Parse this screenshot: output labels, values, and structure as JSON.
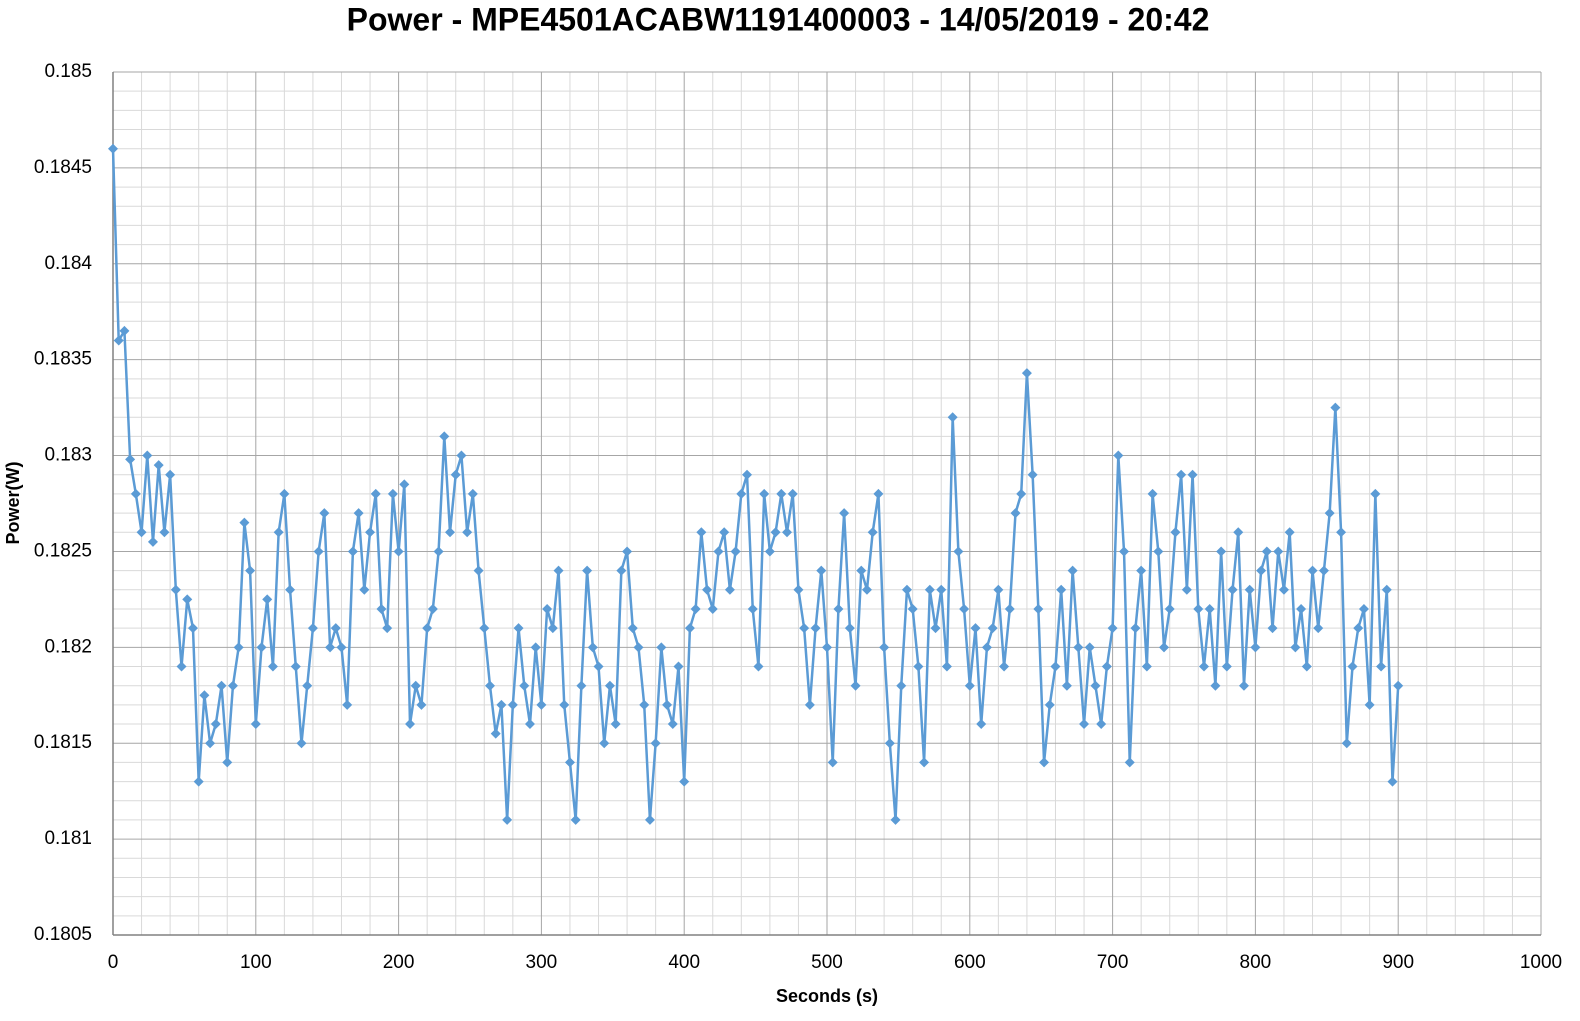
{
  "chart_data": {
    "type": "line",
    "title": "Power - MPE4501ACABW1191400003 - 14/05/2019 - 20:42",
    "x_label": "Seconds (s)",
    "y_label": "Power(W)",
    "color": "#5b9bd5",
    "marker": "diamond",
    "grid": true,
    "minor_grid": true,
    "xlim": [
      0,
      1000
    ],
    "xticks": [
      0,
      100,
      200,
      300,
      400,
      500,
      600,
      700,
      800,
      900,
      1000
    ],
    "ylim": [
      0.1805,
      0.185
    ],
    "yticks": [
      0.1805,
      0.181,
      0.1815,
      0.182,
      0.1825,
      0.183,
      0.1835,
      0.184,
      0.1845,
      0.185
    ],
    "x": [
      0,
      4,
      8,
      12,
      16,
      20,
      24,
      28,
      32,
      36,
      40,
      44,
      48,
      52,
      56,
      60,
      64,
      68,
      72,
      76,
      80,
      84,
      88,
      92,
      96,
      100,
      104,
      108,
      112,
      116,
      120,
      124,
      128,
      132,
      136,
      140,
      144,
      148,
      152,
      156,
      160,
      164,
      168,
      172,
      176,
      180,
      184,
      188,
      192,
      196,
      200,
      204,
      208,
      212,
      216,
      220,
      224,
      228,
      232,
      236,
      240,
      244,
      248,
      252,
      256,
      260,
      264,
      268,
      272,
      276,
      280,
      284,
      288,
      292,
      296,
      300,
      304,
      308,
      312,
      316,
      320,
      324,
      328,
      332,
      336,
      340,
      344,
      348,
      352,
      356,
      360,
      364,
      368,
      372,
      376,
      380,
      384,
      388,
      392,
      396,
      400,
      404,
      408,
      412,
      416,
      420,
      424,
      428,
      432,
      436,
      440,
      444,
      448,
      452,
      456,
      460,
      464,
      468,
      472,
      476,
      480,
      484,
      488,
      492,
      496,
      500,
      504,
      508,
      512,
      516,
      520,
      524,
      528,
      532,
      536,
      540,
      544,
      548,
      552,
      556,
      560,
      564,
      568,
      572,
      576,
      580,
      584,
      588,
      592,
      596,
      600,
      604,
      608,
      612,
      616,
      620,
      624,
      628,
      632,
      636,
      640,
      644,
      648,
      652,
      656,
      660,
      664,
      668,
      672,
      676,
      680,
      684,
      688,
      692,
      696,
      700,
      704,
      708,
      712,
      716,
      720,
      724,
      728,
      732,
      736,
      740,
      744,
      748,
      752,
      756,
      760,
      764,
      768,
      772,
      776,
      780,
      784,
      788,
      792,
      796,
      800,
      804,
      808,
      812,
      816,
      820,
      824,
      828,
      832,
      836,
      840,
      844,
      848,
      852,
      856,
      860,
      864,
      868,
      872,
      876,
      880,
      884,
      888,
      892,
      896,
      900
    ],
    "values": [
      0.1846,
      0.1836,
      0.18365,
      0.18298,
      0.1828,
      0.1826,
      0.183,
      0.18255,
      0.18295,
      0.1826,
      0.1829,
      0.1823,
      0.1819,
      0.18225,
      0.1821,
      0.1813,
      0.18175,
      0.1815,
      0.1816,
      0.1818,
      0.1814,
      0.1818,
      0.182,
      0.18265,
      0.1824,
      0.1816,
      0.182,
      0.18225,
      0.1819,
      0.1826,
      0.1828,
      0.1823,
      0.1819,
      0.1815,
      0.1818,
      0.1821,
      0.1825,
      0.1827,
      0.182,
      0.1821,
      0.182,
      0.1817,
      0.1825,
      0.1827,
      0.1823,
      0.1826,
      0.1828,
      0.1822,
      0.1821,
      0.1828,
      0.1825,
      0.18285,
      0.1816,
      0.1818,
      0.1817,
      0.1821,
      0.1822,
      0.1825,
      0.1831,
      0.1826,
      0.1829,
      0.183,
      0.1826,
      0.1828,
      0.1824,
      0.1821,
      0.1818,
      0.18155,
      0.1817,
      0.1811,
      0.1817,
      0.1821,
      0.1818,
      0.1816,
      0.182,
      0.1817,
      0.1822,
      0.1821,
      0.1824,
      0.1817,
      0.1814,
      0.1811,
      0.1818,
      0.1824,
      0.182,
      0.1819,
      0.1815,
      0.1818,
      0.1816,
      0.1824,
      0.1825,
      0.1821,
      0.182,
      0.1817,
      0.1811,
      0.1815,
      0.182,
      0.1817,
      0.1816,
      0.1819,
      0.1813,
      0.1821,
      0.1822,
      0.1826,
      0.1823,
      0.1822,
      0.1825,
      0.1826,
      0.1823,
      0.1825,
      0.1828,
      0.1829,
      0.1822,
      0.1819,
      0.1828,
      0.1825,
      0.1826,
      0.1828,
      0.1826,
      0.1828,
      0.1823,
      0.1821,
      0.1817,
      0.1821,
      0.1824,
      0.182,
      0.1814,
      0.1822,
      0.1827,
      0.1821,
      0.1818,
      0.1824,
      0.1823,
      0.1826,
      0.1828,
      0.182,
      0.1815,
      0.1811,
      0.1818,
      0.1823,
      0.1822,
      0.1819,
      0.1814,
      0.1823,
      0.1821,
      0.1823,
      0.1819,
      0.1832,
      0.1825,
      0.1822,
      0.1818,
      0.1821,
      0.1816,
      0.182,
      0.1821,
      0.1823,
      0.1819,
      0.1822,
      0.1827,
      0.1828,
      0.18343,
      0.1829,
      0.1822,
      0.1814,
      0.1817,
      0.1819,
      0.1823,
      0.1818,
      0.1824,
      0.182,
      0.1816,
      0.182,
      0.1818,
      0.1816,
      0.1819,
      0.1821,
      0.183,
      0.1825,
      0.1814,
      0.1821,
      0.1824,
      0.1819,
      0.1828,
      0.1825,
      0.182,
      0.1822,
      0.1826,
      0.1829,
      0.1823,
      0.1829,
      0.1822,
      0.1819,
      0.1822,
      0.1818,
      0.1825,
      0.1819,
      0.1823,
      0.1826,
      0.1818,
      0.1823,
      0.182,
      0.1824,
      0.1825,
      0.1821,
      0.1825,
      0.1823,
      0.1826,
      0.182,
      0.1822,
      0.1819,
      0.1824,
      0.1821,
      0.1824,
      0.1827,
      0.18325,
      0.1826,
      0.1815,
      0.1819,
      0.1821,
      0.1822,
      0.1817,
      0.1828,
      0.1819,
      0.1823,
      0.1813,
      0.1818
    ]
  }
}
